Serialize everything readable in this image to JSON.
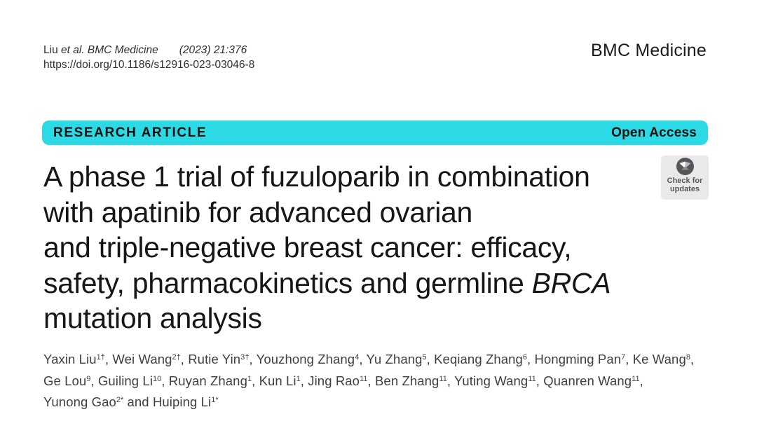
{
  "colors": {
    "accent_banner": "#2bdae4",
    "title_text": "#161616",
    "author_text": "#3f3f3f",
    "badge_bg": "#e9e9e9",
    "badge_text": "#58595b",
    "badge_circle": "#55565a"
  },
  "citation": {
    "authors_short": "Liu ",
    "source_italic": "et al. BMC Medicine",
    "ref": "(2023) 21:376",
    "doi": "https://doi.org/10.1186/s12916-023-03046-8"
  },
  "journal": {
    "name": "BMC Medicine"
  },
  "banner": {
    "kicker": "RESEARCH ARTICLE",
    "access_label": "Open Access"
  },
  "title": {
    "lines": [
      [
        {
          "t": "A phase 1 trial of fuzuloparib in combination"
        }
      ],
      [
        {
          "t": "with apatinib for advanced ovarian"
        }
      ],
      [
        {
          "t": "and triple-negative breast cancer: efficacy,"
        }
      ],
      [
        {
          "t": "safety, pharmacokinetics and germline "
        },
        {
          "t": "BRCA",
          "i": true
        }
      ],
      [
        {
          "t": "mutation analysis"
        }
      ]
    ]
  },
  "crossmark": {
    "line1": "Check for",
    "line2": "updates"
  },
  "authors": {
    "lines": [
      [
        {
          "n": "Yaxin Liu",
          "s": "1†",
          "sep": ", "
        },
        {
          "n": "Wei Wang",
          "s": "2†",
          "sep": ", "
        },
        {
          "n": "Rutie Yin",
          "s": "3†",
          "sep": ", "
        },
        {
          "n": "Youzhong Zhang",
          "s": "4",
          "sep": ", "
        },
        {
          "n": "Yu Zhang",
          "s": "5",
          "sep": ", "
        },
        {
          "n": "Keqiang Zhang",
          "s": "6",
          "sep": ", "
        },
        {
          "n": "Hongming Pan",
          "s": "7",
          "sep": ", "
        },
        {
          "n": "Ke Wang",
          "s": "8",
          "sep": ","
        }
      ],
      [
        {
          "n": "Ge Lou",
          "s": "9",
          "sep": ", "
        },
        {
          "n": "Guiling Li",
          "s": "10",
          "sep": ", "
        },
        {
          "n": "Ruyan Zhang",
          "s": "1",
          "sep": ", "
        },
        {
          "n": "Kun Li",
          "s": "1",
          "sep": ", "
        },
        {
          "n": "Jing Rao",
          "s": "11",
          "sep": ", "
        },
        {
          "n": "Ben Zhang",
          "s": "11",
          "sep": ", "
        },
        {
          "n": "Yuting Wang",
          "s": "11",
          "sep": ", "
        },
        {
          "n": "Quanren Wang",
          "s": "11",
          "sep": ","
        }
      ],
      [
        {
          "n": "Yunong Gao",
          "s": "2*",
          "sep": " and "
        },
        {
          "n": "Huiping Li",
          "s": "1*",
          "sep": ""
        }
      ]
    ]
  }
}
